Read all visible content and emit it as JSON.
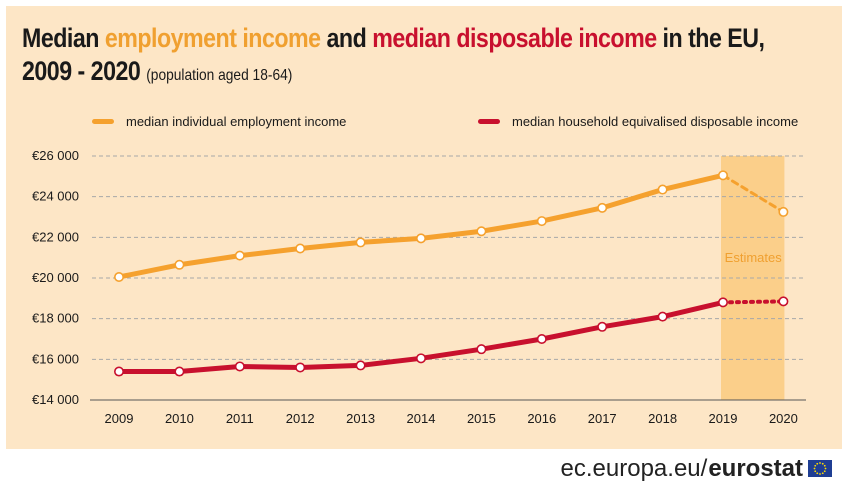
{
  "header": {
    "title_part1": "Median ",
    "title_highlight1": "employment income",
    "title_part2": " and ",
    "title_highlight2": "median disposable income",
    "title_part3": " in the EU,",
    "title_line2": "2009 - 2020",
    "subtitle": "(population aged 18-64)"
  },
  "colors": {
    "background": "#fde6c6",
    "employment": "#f5a12e",
    "disposable": "#c8102e",
    "estimate_band": "#fbcf8a",
    "estimate_text": "#f0a030"
  },
  "chart_data": {
    "type": "line",
    "title": "Median employment income and median disposable income in the EU, 2009 - 2020",
    "subtitle": "(population aged 18-64)",
    "categories": [
      "2009",
      "2010",
      "2011",
      "2012",
      "2013",
      "2014",
      "2015",
      "2016",
      "2017",
      "2018",
      "2019",
      "2020"
    ],
    "series": [
      {
        "name": "median individual employment income",
        "values": [
          20050,
          20650,
          21100,
          21450,
          21750,
          21950,
          22300,
          22800,
          23450,
          24350,
          25050,
          23250
        ]
      },
      {
        "name": "median household equivalised disposable income",
        "values": [
          15400,
          15400,
          15650,
          15600,
          15700,
          16050,
          16500,
          17000,
          17600,
          18100,
          18800,
          18850
        ]
      }
    ],
    "estimate_start": "2019",
    "estimate_label": "Estimates",
    "yticks": [
      14000,
      16000,
      18000,
      20000,
      22000,
      24000,
      26000
    ],
    "ytick_labels": [
      "€14 000",
      "€16 000",
      "€18 000",
      "€20 000",
      "€22 000",
      "€24 000",
      "€26 000"
    ],
    "ylim": [
      14000,
      26000
    ],
    "xlabel": "",
    "ylabel": "",
    "grid": true,
    "legend_position": "top"
  },
  "footer": {
    "source_prefix": "ec.europa.eu/",
    "source_brand": "eurostat"
  }
}
